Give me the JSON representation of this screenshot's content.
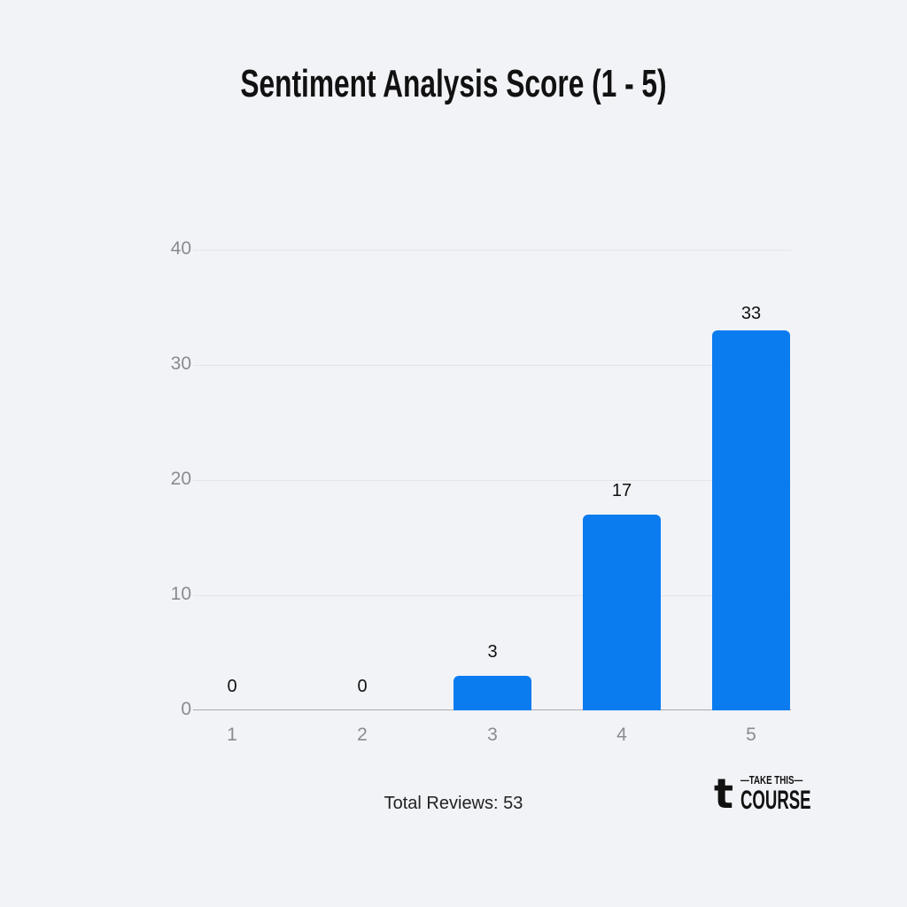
{
  "chart_data": {
    "type": "bar",
    "title": "Sentiment Analysis Score (1 - 5)",
    "categories": [
      "1",
      "2",
      "3",
      "4",
      "5"
    ],
    "values": [
      0,
      0,
      3,
      17,
      33
    ],
    "data_labels": [
      "0",
      "0",
      "3",
      "17",
      "33"
    ],
    "xlabel": "",
    "ylabel": "",
    "ylim": [
      0,
      40
    ],
    "yticks": [
      "0",
      "10",
      "20",
      "30",
      "40"
    ],
    "grid": true,
    "legend": null,
    "bar_color": "#0a7cef",
    "annotation": "Total Reviews: 53"
  },
  "footer": {
    "total_label": "Total Reviews: 53"
  },
  "logo": {
    "glyph": "t",
    "line1": "—TAKE THIS—",
    "line2": "COURSE"
  }
}
